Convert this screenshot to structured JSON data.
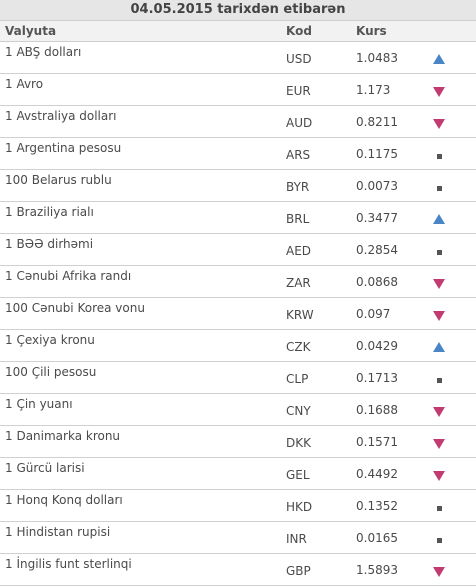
{
  "table": {
    "title": "04.05.2015 tarixdən etibarən",
    "headers": {
      "currency": "Valyuta",
      "code": "Kod",
      "rate": "Kurs"
    },
    "rows": [
      {
        "name": "1 ABŞ dolları",
        "code": "USD",
        "rate": "1.0483",
        "trend": "up"
      },
      {
        "name": "1 Avro",
        "code": "EUR",
        "rate": "1.173",
        "trend": "down"
      },
      {
        "name": "1 Avstraliya dolları",
        "code": "AUD",
        "rate": "0.8211",
        "trend": "down"
      },
      {
        "name": "1 Argentina pesosu",
        "code": "ARS",
        "rate": "0.1175",
        "trend": "same"
      },
      {
        "name": "100 Belarus rublu",
        "code": "BYR",
        "rate": "0.0073",
        "trend": "same"
      },
      {
        "name": "1 Braziliya rialı",
        "code": "BRL",
        "rate": "0.3477",
        "trend": "up"
      },
      {
        "name": "1 BƏƏ dirhəmi",
        "code": "AED",
        "rate": "0.2854",
        "trend": "same"
      },
      {
        "name": "1 Cənubi Afrika randı",
        "code": "ZAR",
        "rate": "0.0868",
        "trend": "down"
      },
      {
        "name": "100 Cənubi Korea vonu",
        "code": "KRW",
        "rate": "0.097",
        "trend": "down"
      },
      {
        "name": "1 Çexiya kronu",
        "code": "CZK",
        "rate": "0.0429",
        "trend": "up"
      },
      {
        "name": "100 Çili pesosu",
        "code": "CLP",
        "rate": "0.1713",
        "trend": "same"
      },
      {
        "name": "1 Çin yuanı",
        "code": "CNY",
        "rate": "0.1688",
        "trend": "down"
      },
      {
        "name": "1 Danimarka kronu",
        "code": "DKK",
        "rate": "0.1571",
        "trend": "down"
      },
      {
        "name": "1 Gürcü larisi",
        "code": "GEL",
        "rate": "0.4492",
        "trend": "down"
      },
      {
        "name": "1 Honq Konq dolları",
        "code": "HKD",
        "rate": "0.1352",
        "trend": "same"
      },
      {
        "name": "1 Hindistan rupisi",
        "code": "INR",
        "rate": "0.0165",
        "trend": "same"
      },
      {
        "name": "1 İngilis funt sterlinqi",
        "code": "GBP",
        "rate": "1.5893",
        "trend": "down"
      }
    ]
  },
  "colors": {
    "up": "#4a86c6",
    "down": "#c23a72",
    "same": "#555555"
  },
  "icons": {
    "up": "triangle-up-icon",
    "down": "triangle-down-icon",
    "same": "square-dot-icon"
  }
}
